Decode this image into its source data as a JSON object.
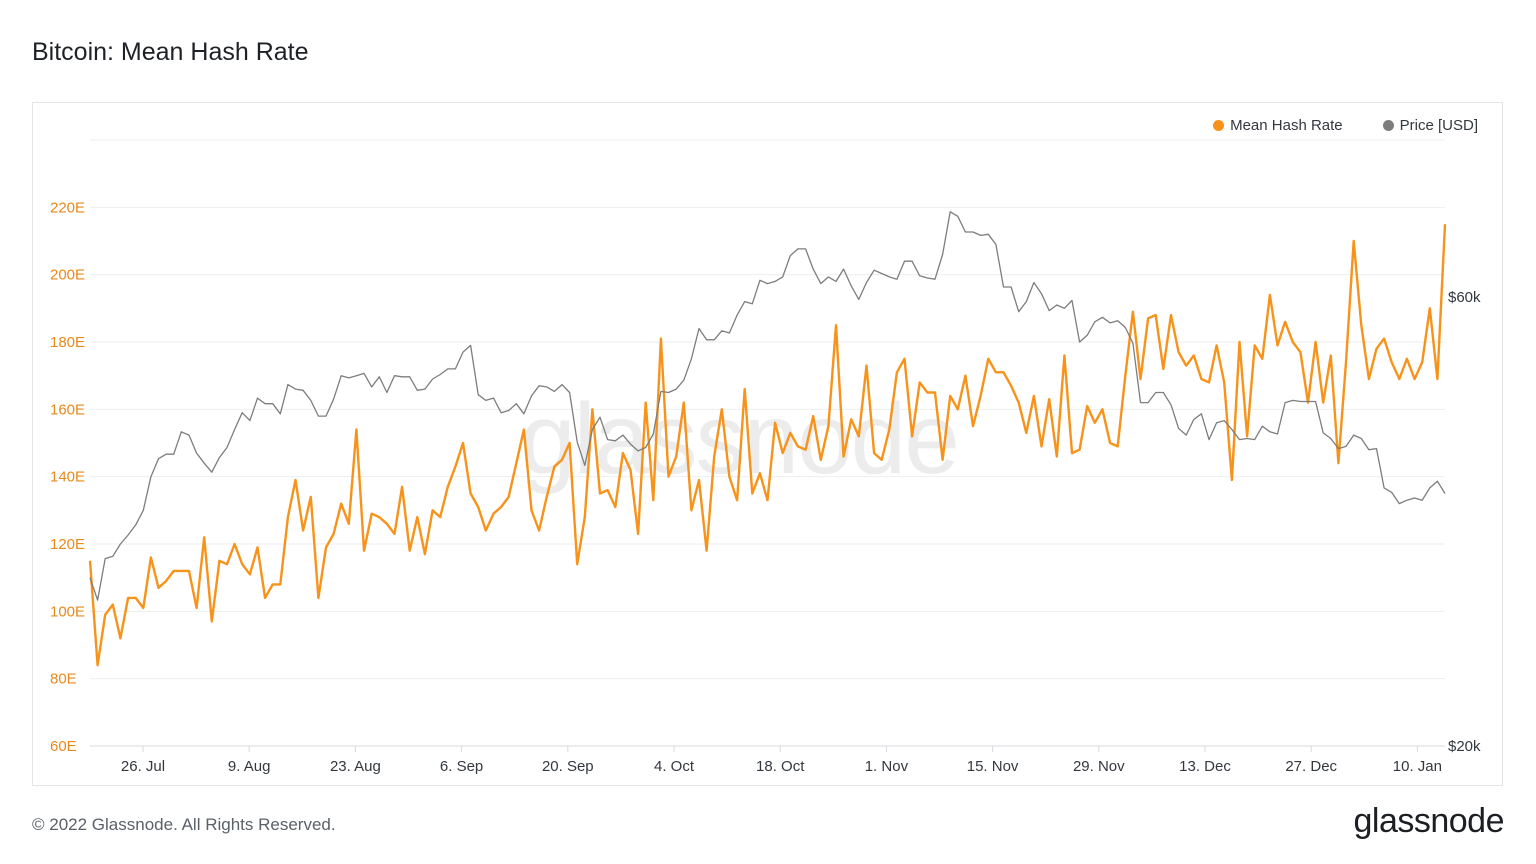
{
  "title": "Bitcoin: Mean Hash Rate",
  "footer": {
    "copyright": "© 2022 Glassnode. All Rights Reserved.",
    "brand": "glassnode"
  },
  "watermark": "glassnode",
  "legend": [
    {
      "label": "Mean Hash Rate",
      "color": "#f7931a"
    },
    {
      "label": "Price [USD]",
      "color": "#7d7d7d"
    }
  ],
  "chart_data": {
    "type": "line",
    "x_tick_labels": [
      "26. Jul",
      "9. Aug",
      "23. Aug",
      "6. Sep",
      "20. Sep",
      "4. Oct",
      "18. Oct",
      "1. Nov",
      "15. Nov",
      "29. Nov",
      "13. Dec",
      "27. Dec",
      "10. Jan"
    ],
    "y_left": {
      "ticks": [
        "60E",
        "80E",
        "100E",
        "120E",
        "140E",
        "160E",
        "180E",
        "200E",
        "220E"
      ],
      "range": [
        60,
        240
      ]
    },
    "y_right": {
      "ticks": [
        "$20k",
        "$60k"
      ],
      "range": [
        20000,
        74000
      ]
    },
    "grid": true,
    "legend_position": "top-right",
    "series": [
      {
        "name": "Mean Hash Rate",
        "color": "#f7931a",
        "axis": "left",
        "values": [
          115,
          84,
          99,
          102,
          92,
          104,
          104,
          101,
          116,
          107,
          109,
          112,
          112,
          112,
          101,
          122,
          97,
          115,
          114,
          120,
          114,
          111,
          119,
          104,
          108,
          108,
          128,
          139,
          124,
          134,
          104,
          119,
          123,
          132,
          126,
          154,
          118,
          129,
          128,
          126,
          123,
          137,
          118,
          128,
          117,
          130,
          128,
          137,
          143,
          150,
          135,
          131,
          124,
          129,
          131,
          134,
          144,
          154,
          130,
          124,
          134,
          143,
          145,
          150,
          114,
          128,
          160,
          135,
          136,
          131,
          147,
          142,
          123,
          162,
          133,
          181,
          140,
          146,
          162,
          130,
          139,
          118,
          146,
          160,
          140,
          133,
          166,
          135,
          141,
          133,
          156,
          147,
          153,
          149,
          148,
          158,
          145,
          155,
          185,
          146,
          157,
          152,
          173,
          147,
          145,
          154,
          171,
          175,
          152,
          168,
          165,
          165,
          145,
          164,
          160,
          170,
          155,
          164,
          175,
          171,
          171,
          167,
          162,
          153,
          164,
          149,
          163,
          146,
          176,
          147,
          148,
          161,
          156,
          160,
          150,
          149,
          170,
          189,
          169,
          187,
          188,
          172,
          188,
          177,
          173,
          176,
          169,
          168,
          179,
          168,
          139,
          180,
          152,
          179,
          175,
          194,
          179,
          186,
          180,
          177,
          162,
          180,
          162,
          176,
          144,
          174,
          210,
          185,
          169,
          178,
          181,
          174,
          169,
          175,
          169,
          174,
          190,
          169,
          215
        ]
      },
      {
        "name": "Price [USD]",
        "color": "#7d7d7d",
        "axis": "right",
        "values": [
          35000,
          33000,
          36700,
          36900,
          38000,
          38800,
          39700,
          41000,
          44000,
          45600,
          46000,
          46000,
          48000,
          47700,
          46100,
          45200,
          44400,
          45700,
          46600,
          48200,
          49700,
          49000,
          51000,
          50500,
          50500,
          49600,
          52200,
          51800,
          51700,
          50800,
          49400,
          49400,
          50900,
          53000,
          52800,
          53000,
          53200,
          52000,
          52900,
          51500,
          53000,
          52900,
          52900,
          51700,
          51800,
          52700,
          53100,
          53600,
          53600,
          55100,
          55700,
          51300,
          50800,
          51000,
          49700,
          49900,
          50500,
          49600,
          51200,
          52100,
          52000,
          51600,
          52200,
          51500,
          47100,
          45000,
          48200,
          49300,
          47300,
          47200,
          47700,
          46900,
          46300,
          46600,
          47800,
          51600,
          51500,
          51800,
          52600,
          54500,
          57200,
          56200,
          56200,
          57000,
          56800,
          58400,
          59600,
          59400,
          61500,
          61200,
          61400,
          61800,
          63700,
          64300,
          64300,
          62500,
          61200,
          61800,
          61400,
          62500,
          61000,
          59800,
          61300,
          62400,
          62100,
          61800,
          61600,
          63200,
          63200,
          61900,
          61700,
          61600,
          63800,
          67600,
          67200,
          65800,
          65800,
          65500,
          65600,
          64700,
          60900,
          60900,
          58700,
          59600,
          61300,
          60300,
          58800,
          59300,
          59000,
          59700,
          56000,
          56600,
          57800,
          58200,
          57700,
          57900,
          57300,
          55900,
          50600,
          50600,
          51500,
          51500,
          50400,
          48300,
          47700,
          49100,
          49600,
          47300,
          48800,
          49000,
          48200,
          47300,
          47400,
          47300,
          48500,
          48000,
          47800,
          50600,
          50800,
          50700,
          50700,
          50700,
          47900,
          47400,
          46500,
          46700,
          47700,
          47400,
          46400,
          46500,
          43000,
          42600,
          41600,
          41900,
          42100,
          41900,
          43000,
          43600,
          42500
        ]
      }
    ]
  }
}
